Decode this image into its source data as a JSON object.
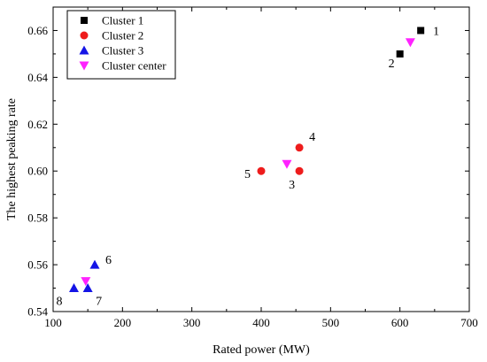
{
  "chart_data": {
    "type": "scatter",
    "xlabel": "Rated power (MW)",
    "ylabel": "The highest peaking rate",
    "xlim": [
      100,
      700
    ],
    "ylim": [
      0.54,
      0.67
    ],
    "x_ticks": [
      "100",
      "200",
      "300",
      "400",
      "500",
      "600",
      "700"
    ],
    "y_ticks": [
      "0.54",
      "0.56",
      "0.58",
      "0.60",
      "0.62",
      "0.64",
      "0.66"
    ],
    "grid": false,
    "legend_position": "top-left",
    "series": [
      {
        "name": "Cluster 1",
        "marker": "square",
        "color": "#000000",
        "points": [
          {
            "x": 630,
            "y": 0.66,
            "label": "1"
          },
          {
            "x": 600,
            "y": 0.65,
            "label": "2"
          }
        ]
      },
      {
        "name": "Cluster 2",
        "marker": "circle",
        "color": "#ee1c1c",
        "points": [
          {
            "x": 455,
            "y": 0.6,
            "label": "3"
          },
          {
            "x": 455,
            "y": 0.61,
            "label": "4"
          },
          {
            "x": 400,
            "y": 0.6,
            "label": "5"
          }
        ]
      },
      {
        "name": "Cluster 3",
        "marker": "triangle-up",
        "color": "#1414e6",
        "points": [
          {
            "x": 160,
            "y": 0.56,
            "label": "6"
          },
          {
            "x": 150,
            "y": 0.55,
            "label": "7"
          },
          {
            "x": 130,
            "y": 0.55,
            "label": "8"
          }
        ]
      },
      {
        "name": "Cluster center",
        "marker": "triangle-down",
        "color": "#ff22ff",
        "points": [
          {
            "x": 615,
            "y": 0.655
          },
          {
            "x": 437,
            "y": 0.603
          },
          {
            "x": 147,
            "y": 0.553
          }
        ]
      }
    ]
  }
}
